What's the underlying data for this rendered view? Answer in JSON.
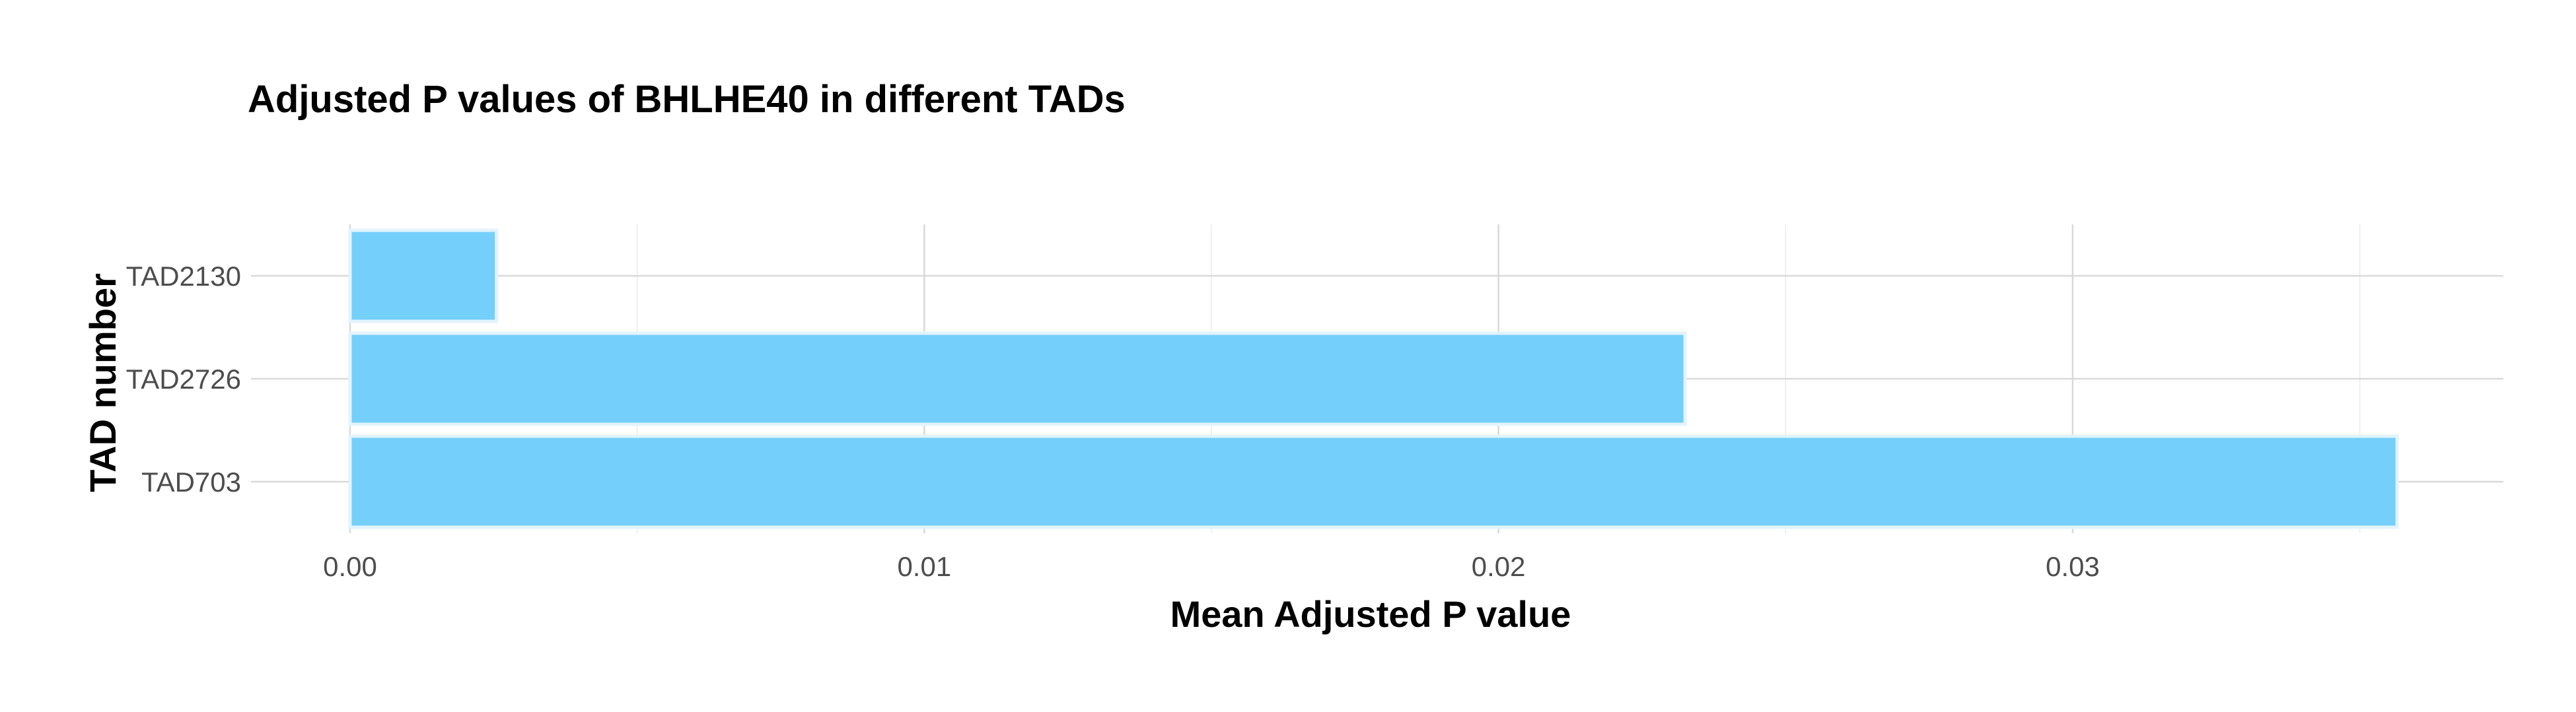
{
  "chart_data": {
    "type": "bar",
    "orientation": "horizontal",
    "title": "Adjusted P values of BHLHE40 in different TADs",
    "xlabel": "Mean Adjusted P value",
    "ylabel": "TAD number",
    "categories": [
      "TAD2130",
      "TAD2726",
      "TAD703"
    ],
    "values": [
      0.00255,
      0.02325,
      0.03565
    ],
    "xlim": [
      0,
      0.0375
    ],
    "xticks": [
      0,
      0.01,
      0.02,
      0.03
    ],
    "xtick_labels": [
      "0.00",
      "0.01",
      "0.02",
      "0.03"
    ],
    "bar_color": "#74cffa",
    "bar_outline_color": "#e2f3fb",
    "grid": true,
    "legend": "none"
  }
}
